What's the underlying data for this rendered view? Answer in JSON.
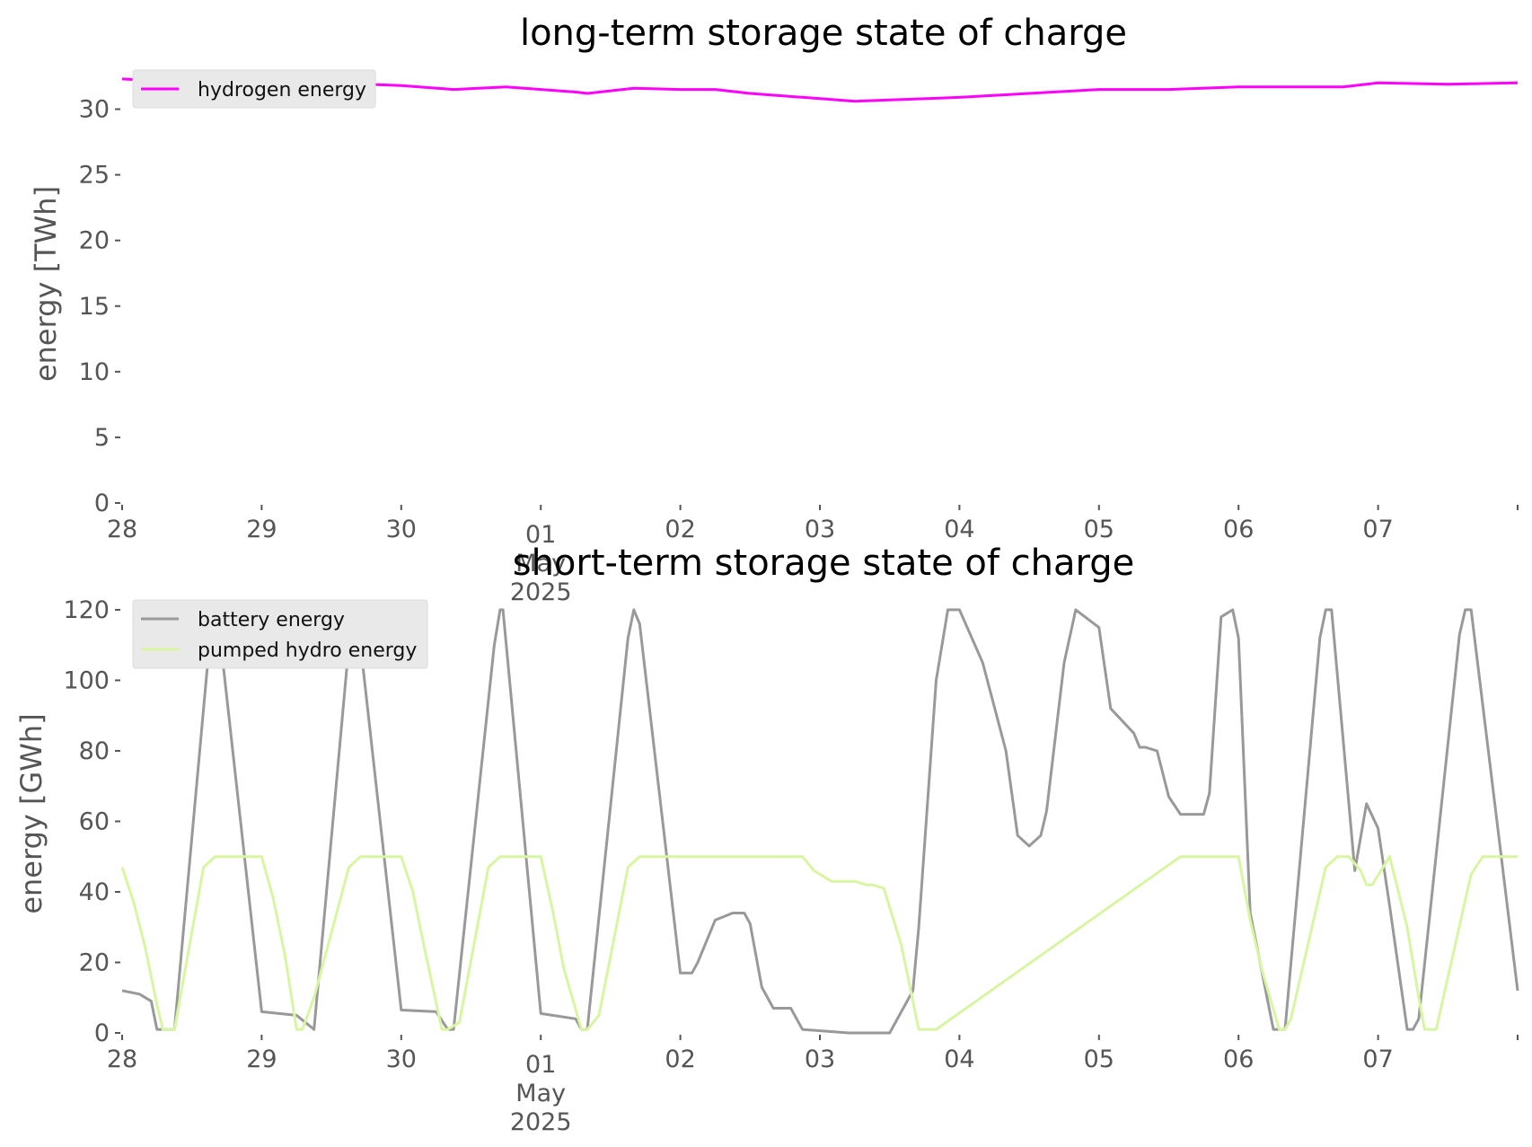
{
  "chart_data": [
    {
      "type": "line",
      "title": "long-term storage state of charge",
      "xlabel": "",
      "ylabel": "energy [TWh]",
      "x_range": [
        "2025-04-28T00:00",
        "2025-05-08T00:00"
      ],
      "ylim": [
        0,
        32.5
      ],
      "yticks": [
        0,
        5,
        10,
        15,
        20,
        25,
        30
      ],
      "xticks": [
        {
          "x": "2025-04-28",
          "label": "28"
        },
        {
          "x": "2025-04-29",
          "label": "29"
        },
        {
          "x": "2025-04-30",
          "label": "30"
        },
        {
          "x": "2025-05-01",
          "label": "01",
          "label2": "May",
          "label3": "2025"
        },
        {
          "x": "2025-05-02",
          "label": "02"
        },
        {
          "x": "2025-05-03",
          "label": "03"
        },
        {
          "x": "2025-05-04",
          "label": "04"
        },
        {
          "x": "2025-05-05",
          "label": "05"
        },
        {
          "x": "2025-05-06",
          "label": "06"
        },
        {
          "x": "2025-05-07",
          "label": "07"
        }
      ],
      "grid": false,
      "legend_position": "top-left",
      "series": [
        {
          "name": "hydrogen energy",
          "color": "#ff00ff",
          "x": [
            "2025-04-28T00:00",
            "2025-04-28T12:00",
            "2025-04-29T00:00",
            "2025-04-29T12:00",
            "2025-04-30T00:00",
            "2025-04-30T09:00",
            "2025-04-30T18:00",
            "2025-05-01T06:00",
            "2025-05-01T08:00",
            "2025-05-01T16:00",
            "2025-05-02T00:00",
            "2025-05-02T06:00",
            "2025-05-02T12:00",
            "2025-05-03T00:00",
            "2025-05-03T06:00",
            "2025-05-03T12:00",
            "2025-05-04T00:00",
            "2025-05-04T12:00",
            "2025-05-05T00:00",
            "2025-05-05T12:00",
            "2025-05-06T00:00",
            "2025-05-06T06:00",
            "2025-05-06T18:00",
            "2025-05-07T00:00",
            "2025-05-07T12:00",
            "2025-05-08T00:00"
          ],
          "y": [
            32.3,
            32.0,
            32.3,
            32.0,
            31.8,
            31.5,
            31.7,
            31.3,
            31.2,
            31.6,
            31.5,
            31.5,
            31.2,
            30.8,
            30.6,
            30.7,
            30.9,
            31.2,
            31.5,
            31.5,
            31.7,
            31.7,
            31.7,
            32.0,
            31.9,
            32.0
          ]
        }
      ]
    },
    {
      "type": "line",
      "title": "short-term storage state of charge",
      "xlabel": "",
      "ylabel": "energy [GWh]",
      "x_range": [
        "2025-04-28T00:00",
        "2025-05-08T00:00"
      ],
      "ylim": [
        0,
        121
      ],
      "yticks": [
        0,
        20,
        40,
        60,
        80,
        100,
        120
      ],
      "xticks": [
        {
          "x": "2025-04-28",
          "label": "28"
        },
        {
          "x": "2025-04-29",
          "label": "29"
        },
        {
          "x": "2025-04-30",
          "label": "30"
        },
        {
          "x": "2025-05-01",
          "label": "01",
          "label2": "May",
          "label3": "2025"
        },
        {
          "x": "2025-05-02",
          "label": "02"
        },
        {
          "x": "2025-05-03",
          "label": "03"
        },
        {
          "x": "2025-05-04",
          "label": "04"
        },
        {
          "x": "2025-05-05",
          "label": "05"
        },
        {
          "x": "2025-05-06",
          "label": "06"
        },
        {
          "x": "2025-05-07",
          "label": "07"
        }
      ],
      "grid": false,
      "legend_position": "top-left",
      "series": [
        {
          "name": "battery energy",
          "color": "#999999",
          "x": [
            "2025-04-28T00:00",
            "2025-04-28T03:00",
            "2025-04-28T05:00",
            "2025-04-28T06:00",
            "2025-04-28T09:00",
            "2025-04-28T15:00",
            "2025-04-28T16:00",
            "2025-04-28T17:00",
            "2025-04-29T00:00",
            "2025-04-29T06:00",
            "2025-04-29T09:00",
            "2025-04-29T15:00",
            "2025-04-29T16:00",
            "2025-04-29T17:00",
            "2025-04-30T00:00",
            "2025-04-30T06:00",
            "2025-04-30T08:00",
            "2025-04-30T09:00",
            "2025-04-30T16:00",
            "2025-04-30T17:00",
            "2025-04-30T17:30",
            "2025-05-01T00:00",
            "2025-05-01T06:00",
            "2025-05-01T07:00",
            "2025-05-01T08:00",
            "2025-05-01T15:00",
            "2025-05-01T16:00",
            "2025-05-01T17:00",
            "2025-05-02T00:00",
            "2025-05-02T02:00",
            "2025-05-02T03:00",
            "2025-05-02T06:00",
            "2025-05-02T09:00",
            "2025-05-02T11:00",
            "2025-05-02T12:00",
            "2025-05-02T14:00",
            "2025-05-02T16:00",
            "2025-05-02T19:00",
            "2025-05-02T21:00",
            "2025-05-03T05:00",
            "2025-05-03T07:00",
            "2025-05-03T12:00",
            "2025-05-03T16:00",
            "2025-05-03T17:00",
            "2025-05-03T20:00",
            "2025-05-03T22:00",
            "2025-05-04T00:00",
            "2025-05-04T04:00",
            "2025-05-04T08:00",
            "2025-05-04T10:00",
            "2025-05-04T12:00",
            "2025-05-04T14:00",
            "2025-05-04T15:00",
            "2025-05-04T18:00",
            "2025-05-04T20:00",
            "2025-05-05T00:00",
            "2025-05-05T02:00",
            "2025-05-05T06:00",
            "2025-05-05T07:00",
            "2025-05-05T08:00",
            "2025-05-05T10:00",
            "2025-05-05T12:00",
            "2025-05-05T14:00",
            "2025-05-05T18:00",
            "2025-05-05T19:00",
            "2025-05-05T21:00",
            "2025-05-05T23:00",
            "2025-05-06T00:00",
            "2025-05-06T02:00",
            "2025-05-06T06:00",
            "2025-05-06T07:00",
            "2025-05-06T08:00",
            "2025-05-06T14:00",
            "2025-05-06T15:00",
            "2025-05-06T16:00",
            "2025-05-06T20:00",
            "2025-05-06T22:00",
            "2025-05-07T00:00",
            "2025-05-07T02:00",
            "2025-05-07T05:00",
            "2025-05-07T06:00",
            "2025-05-07T07:00",
            "2025-05-07T14:00",
            "2025-05-07T15:00",
            "2025-05-07T16:00",
            "2025-05-08T00:00"
          ],
          "y": [
            12,
            11,
            9,
            1,
            1,
            110,
            120,
            110,
            6,
            5,
            1,
            110,
            120,
            110,
            6.5,
            6,
            1,
            1,
            110,
            120,
            120,
            5.5,
            4,
            1,
            1,
            112,
            120,
            116,
            17,
            17,
            20,
            32,
            34,
            34,
            31,
            13,
            7,
            7,
            1,
            0,
            0,
            0,
            12,
            30,
            100,
            120,
            120,
            105,
            80,
            56,
            53,
            56,
            63,
            105,
            120,
            115,
            92,
            85,
            81,
            81,
            80,
            67,
            62,
            62,
            68,
            118,
            120,
            112,
            34,
            1,
            1,
            1,
            112,
            120,
            120,
            46,
            65,
            58,
            36,
            1,
            1,
            4,
            113,
            120,
            120,
            12
          ]
        },
        {
          "name": "pumped hydro energy",
          "color": "#d8f5a2",
          "x": [
            "2025-04-28T00:00",
            "2025-04-28T02:00",
            "2025-04-28T04:00",
            "2025-04-28T06:00",
            "2025-04-28T07:00",
            "2025-04-28T09:00",
            "2025-04-28T14:00",
            "2025-04-28T16:00",
            "2025-04-29T00:00",
            "2025-04-29T02:00",
            "2025-04-29T04:00",
            "2025-04-29T06:00",
            "2025-04-29T07:00",
            "2025-04-29T09:00",
            "2025-04-29T15:00",
            "2025-04-29T17:00",
            "2025-04-30T00:00",
            "2025-04-30T02:00",
            "2025-04-30T04:00",
            "2025-04-30T07:00",
            "2025-04-30T08:00",
            "2025-04-30T10:00",
            "2025-04-30T15:00",
            "2025-04-30T17:00",
            "2025-05-01T00:00",
            "2025-05-01T02:00",
            "2025-05-01T04:00",
            "2025-05-01T07:00",
            "2025-05-01T08:00",
            "2025-05-01T10:00",
            "2025-05-01T15:00",
            "2025-05-01T17:00",
            "2025-05-02T08:00",
            "2025-05-02T09:00",
            "2025-05-02T12:00",
            "2025-05-02T17:00",
            "2025-05-02T21:00",
            "2025-05-02T23:00",
            "2025-05-03T02:00",
            "2025-05-03T06:00",
            "2025-05-03T08:00",
            "2025-05-03T09:00",
            "2025-05-03T11:00",
            "2025-05-03T14:00",
            "2025-05-03T17:00",
            "2025-05-03T20:00",
            "2025-05-05T14:00",
            "2025-05-05T23:00",
            "2025-05-06T00:00",
            "2025-05-06T02:00",
            "2025-05-06T04:00",
            "2025-05-06T07:00",
            "2025-05-06T08:00",
            "2025-05-06T09:00",
            "2025-05-06T15:00",
            "2025-05-06T17:00",
            "2025-05-06T19:00",
            "2025-05-06T21:00",
            "2025-05-06T22:00",
            "2025-05-06T23:00",
            "2025-05-07T02:00",
            "2025-05-07T05:00",
            "2025-05-07T07:00",
            "2025-05-07T08:00",
            "2025-05-07T10:00",
            "2025-05-07T16:00",
            "2025-05-07T18:00",
            "2025-05-08T00:00"
          ],
          "y": [
            47,
            37,
            24,
            8,
            1,
            1,
            47,
            50,
            50,
            38,
            22,
            1,
            1,
            10,
            47,
            50,
            50,
            40,
            24,
            1,
            1,
            3,
            47,
            50,
            50,
            35,
            18,
            1,
            1,
            5,
            47,
            50,
            50,
            50,
            50,
            50,
            50,
            46,
            43,
            43,
            42,
            42,
            41,
            25,
            1,
            1,
            50,
            50,
            50,
            32,
            18,
            1,
            1,
            4,
            47,
            50,
            50,
            46,
            42,
            42,
            50,
            30,
            10,
            1,
            1,
            45,
            50,
            50
          ]
        }
      ]
    }
  ]
}
